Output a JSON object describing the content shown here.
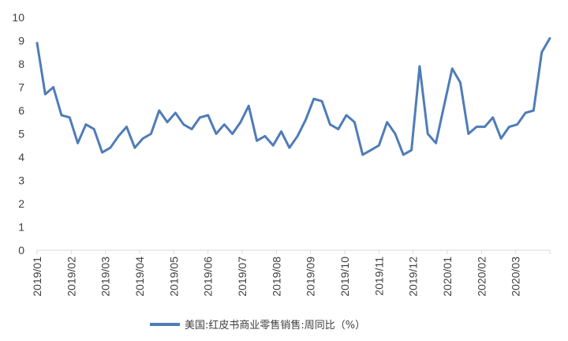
{
  "chart_data": {
    "type": "line",
    "title": "",
    "xlabel": "",
    "ylabel": "",
    "ylim": [
      0,
      10
    ],
    "y_ticks": [
      "0",
      "1",
      "2",
      "3",
      "4",
      "5",
      "6",
      "7",
      "8",
      "9",
      "10"
    ],
    "x_ticks": [
      "2019/01",
      "2019/02",
      "2019/03",
      "2019/04",
      "2019/05",
      "2019/06",
      "2019/07",
      "2019/08",
      "2019/09",
      "2019/10",
      "2019/11",
      "2019/12",
      "2020/01",
      "2020/02",
      "2020/03"
    ],
    "grid": false,
    "legend_position": "bottom",
    "line_color": "#4f7cb8",
    "series": [
      {
        "name": "美国:红皮书商业零售销售:周同比（%）",
        "values": [
          8.9,
          6.7,
          7.0,
          5.8,
          5.7,
          4.6,
          5.4,
          5.2,
          4.2,
          4.4,
          4.9,
          5.3,
          4.4,
          4.8,
          5.0,
          6.0,
          5.5,
          5.9,
          5.4,
          5.2,
          5.7,
          5.8,
          5.0,
          5.4,
          5.0,
          5.5,
          6.2,
          4.7,
          4.9,
          4.5,
          5.1,
          4.4,
          4.9,
          5.6,
          6.5,
          6.4,
          5.4,
          5.2,
          5.8,
          5.5,
          4.1,
          4.3,
          4.5,
          5.5,
          5.0,
          4.1,
          4.3,
          7.9,
          5.0,
          4.6,
          6.2,
          7.8,
          7.2,
          5.0,
          5.3,
          5.3,
          5.7,
          4.8,
          5.3,
          5.4,
          5.9,
          6.0,
          8.5,
          9.1
        ]
      }
    ]
  }
}
